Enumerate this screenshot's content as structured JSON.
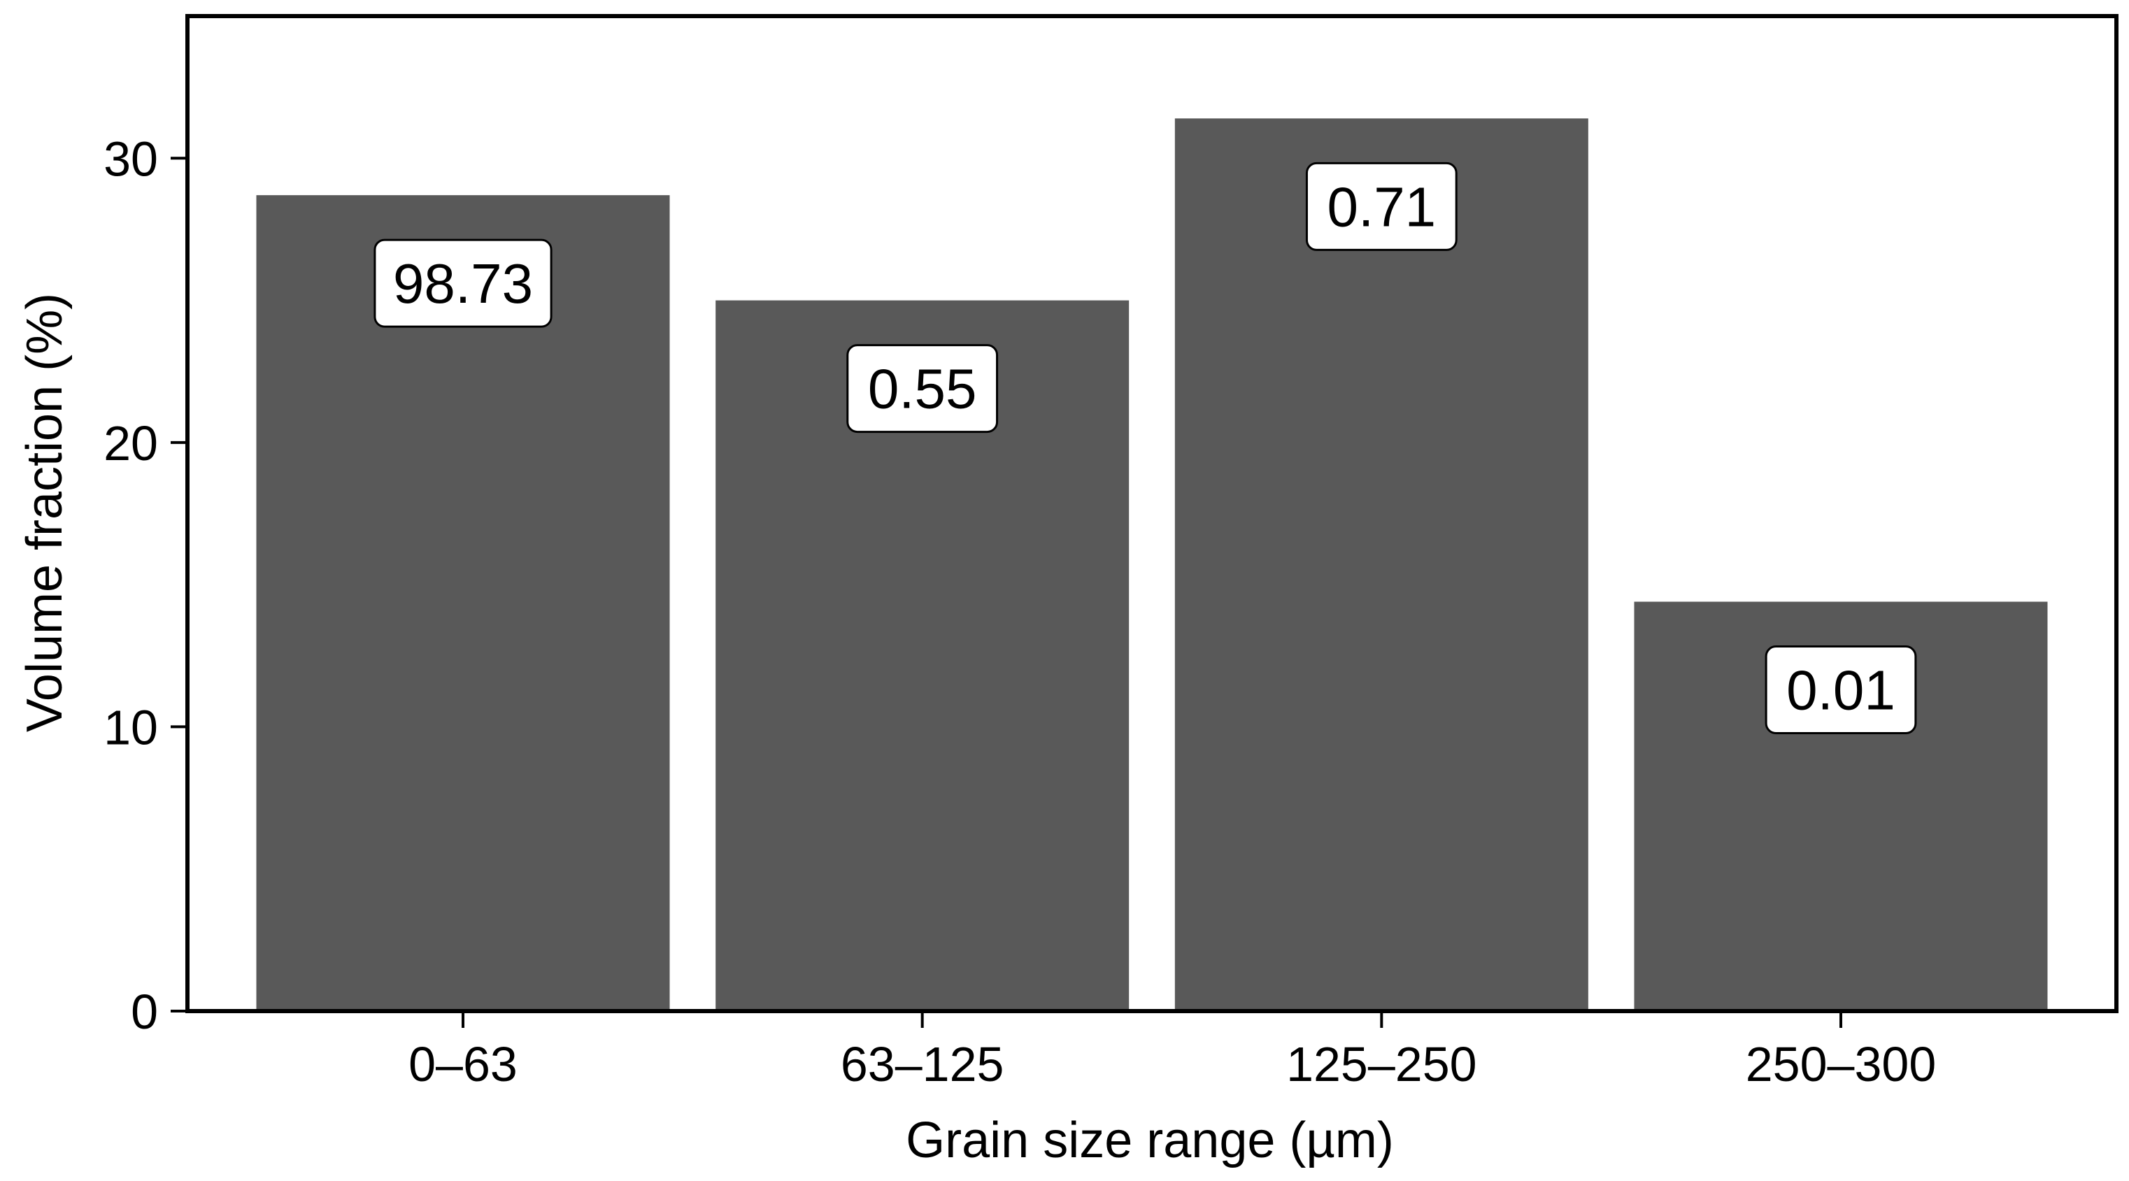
{
  "chart_data": {
    "type": "bar",
    "categories": [
      "0–63",
      "63–125",
      "125–250",
      "250–300"
    ],
    "values": [
      28.7,
      25.0,
      31.4,
      14.4
    ],
    "bar_labels": [
      "98.73",
      "0.55",
      "0.71",
      "0.01"
    ],
    "xlabel": "Grain size range (µm)",
    "ylabel": "Volume fraction (%)",
    "ylim": [
      0,
      35
    ],
    "yticks": [
      0,
      10,
      20,
      30
    ],
    "grid": false,
    "legend": "none",
    "colors": {
      "bar": "#595959",
      "axis": "#000000",
      "label_box": "#ffffff"
    }
  }
}
